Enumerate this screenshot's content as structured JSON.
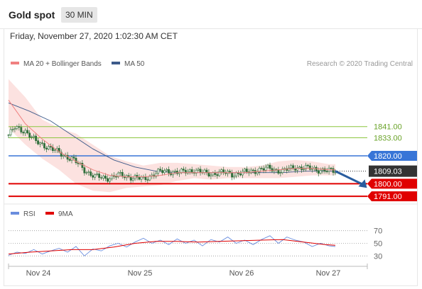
{
  "header": {
    "title": "Gold spot",
    "timeframe": "30 MIN"
  },
  "datetime": "Friday, November 27, 2020 1:02:30 AM CET",
  "credit": "Research © 2020 Trading Central",
  "colors": {
    "ma20": "#f08080",
    "ma50": "#3d5a8a",
    "bands": "#fbd8d6",
    "support": "#e00000",
    "pivot": "#3875d7",
    "resistance": "#8cc63f",
    "candle": "#2f6e3a",
    "rsi": "#6a8dde",
    "rsi_ma": "#e00000",
    "arrow": "#2a5d9e"
  },
  "chart_data": [
    {
      "type": "candlestick",
      "legend": [
        {
          "label": "MA 20 + Bollinger Bands",
          "color": "#f08080"
        },
        {
          "label": "MA 50",
          "color": "#3d5a8a"
        }
      ],
      "x_ticks": [
        "Nov 24",
        "Nov 25",
        "Nov 26",
        "Nov 27"
      ],
      "ylim": [
        1788,
        1880
      ],
      "levels": [
        {
          "label": "1841.00",
          "value": 1841.0,
          "kind": "resistance"
        },
        {
          "label": "1833.00",
          "value": 1833.0,
          "kind": "resistance"
        },
        {
          "label": "1820.00",
          "value": 1820.0,
          "kind": "pivot"
        },
        {
          "label": "1809.03",
          "value": 1809.03,
          "kind": "last"
        },
        {
          "label": "1800.00",
          "value": 1800.0,
          "kind": "support"
        },
        {
          "label": "1791.00",
          "value": 1791.0,
          "kind": "support"
        }
      ],
      "close_path": [
        [
          0,
          1835
        ],
        [
          3,
          1840
        ],
        [
          8,
          1838
        ],
        [
          13,
          1830
        ],
        [
          18,
          1827
        ],
        [
          24,
          1822
        ],
        [
          30,
          1818
        ],
        [
          36,
          1810
        ],
        [
          41,
          1805
        ],
        [
          46,
          1804
        ],
        [
          52,
          1806
        ],
        [
          58,
          1805
        ],
        [
          64,
          1803
        ],
        [
          70,
          1808
        ],
        [
          76,
          1809
        ],
        [
          82,
          1808
        ],
        [
          88,
          1810
        ],
        [
          94,
          1807
        ],
        [
          100,
          1808
        ],
        [
          106,
          1807
        ],
        [
          112,
          1808
        ],
        [
          118,
          1810
        ],
        [
          124,
          1811
        ],
        [
          130,
          1809
        ],
        [
          136,
          1812
        ],
        [
          142,
          1811
        ],
        [
          148,
          1810
        ],
        [
          152,
          1809
        ],
        [
          155,
          1809.03
        ]
      ],
      "ma20_path": [
        [
          0,
          1860
        ],
        [
          8,
          1843
        ],
        [
          16,
          1832
        ],
        [
          24,
          1823
        ],
        [
          32,
          1816
        ],
        [
          40,
          1810
        ],
        [
          48,
          1806
        ],
        [
          56,
          1805
        ],
        [
          64,
          1805
        ],
        [
          72,
          1806
        ],
        [
          80,
          1808
        ],
        [
          88,
          1808
        ],
        [
          96,
          1808
        ],
        [
          104,
          1808
        ],
        [
          112,
          1808
        ],
        [
          120,
          1809
        ],
        [
          128,
          1810
        ],
        [
          136,
          1811
        ],
        [
          144,
          1811
        ],
        [
          152,
          1810
        ],
        [
          155,
          1810
        ]
      ],
      "band_upper": [
        [
          0,
          1875
        ],
        [
          8,
          1862
        ],
        [
          16,
          1846
        ],
        [
          24,
          1840
        ],
        [
          32,
          1836
        ],
        [
          40,
          1828
        ],
        [
          48,
          1820
        ],
        [
          56,
          1816
        ],
        [
          64,
          1813
        ],
        [
          72,
          1815
        ],
        [
          80,
          1815
        ],
        [
          88,
          1814
        ],
        [
          96,
          1813
        ],
        [
          104,
          1812
        ],
        [
          112,
          1812
        ],
        [
          120,
          1813
        ],
        [
          128,
          1816
        ],
        [
          136,
          1817
        ],
        [
          144,
          1816
        ],
        [
          152,
          1814
        ],
        [
          155,
          1814
        ]
      ],
      "band_lower": [
        [
          0,
          1840
        ],
        [
          8,
          1828
        ],
        [
          16,
          1818
        ],
        [
          24,
          1810
        ],
        [
          32,
          1800
        ],
        [
          40,
          1795
        ],
        [
          48,
          1794
        ],
        [
          56,
          1797
        ],
        [
          64,
          1798
        ],
        [
          72,
          1799
        ],
        [
          80,
          1802
        ],
        [
          88,
          1804
        ],
        [
          96,
          1803
        ],
        [
          104,
          1804
        ],
        [
          112,
          1804
        ],
        [
          120,
          1804
        ],
        [
          128,
          1804
        ],
        [
          136,
          1805
        ],
        [
          144,
          1806
        ],
        [
          152,
          1806
        ],
        [
          155,
          1806
        ]
      ],
      "ma50_path": [
        [
          0,
          1858
        ],
        [
          10,
          1852
        ],
        [
          20,
          1845
        ],
        [
          30,
          1835
        ],
        [
          40,
          1825
        ],
        [
          50,
          1817
        ],
        [
          60,
          1812
        ],
        [
          70,
          1809
        ],
        [
          80,
          1808
        ],
        [
          90,
          1808
        ],
        [
          100,
          1808
        ],
        [
          110,
          1808
        ],
        [
          120,
          1808
        ],
        [
          130,
          1808
        ],
        [
          140,
          1809
        ],
        [
          150,
          1809
        ],
        [
          155,
          1809
        ]
      ],
      "forecast_arrow": [
        [
          155,
          1809.03
        ],
        [
          170,
          1797
        ]
      ]
    },
    {
      "type": "line",
      "legend": [
        {
          "label": "RSI",
          "color": "#6a8dde"
        },
        {
          "label": "9MA",
          "color": "#e00000"
        }
      ],
      "y_ticks": [
        "70",
        "50",
        "30"
      ],
      "levels": [
        70,
        50,
        30
      ],
      "ylim": [
        18,
        82
      ],
      "rsi_path": [
        [
          0,
          31
        ],
        [
          4,
          36
        ],
        [
          8,
          34
        ],
        [
          12,
          40
        ],
        [
          16,
          33
        ],
        [
          20,
          38
        ],
        [
          24,
          42
        ],
        [
          28,
          36
        ],
        [
          32,
          45
        ],
        [
          36,
          30
        ],
        [
          40,
          41
        ],
        [
          44,
          38
        ],
        [
          48,
          46
        ],
        [
          52,
          50
        ],
        [
          56,
          44
        ],
        [
          60,
          52
        ],
        [
          64,
          58
        ],
        [
          68,
          50
        ],
        [
          72,
          55
        ],
        [
          76,
          48
        ],
        [
          80,
          57
        ],
        [
          84,
          50
        ],
        [
          88,
          55
        ],
        [
          92,
          46
        ],
        [
          96,
          56
        ],
        [
          100,
          52
        ],
        [
          104,
          60
        ],
        [
          108,
          50
        ],
        [
          112,
          55
        ],
        [
          116,
          48
        ],
        [
          120,
          56
        ],
        [
          124,
          62
        ],
        [
          128,
          50
        ],
        [
          132,
          60
        ],
        [
          136,
          55
        ],
        [
          140,
          52
        ],
        [
          144,
          45
        ],
        [
          148,
          50
        ],
        [
          152,
          46
        ],
        [
          155,
          45
        ]
      ],
      "rsi_ma_path": [
        [
          0,
          33
        ],
        [
          10,
          36
        ],
        [
          20,
          38
        ],
        [
          30,
          40
        ],
        [
          40,
          40
        ],
        [
          50,
          44
        ],
        [
          60,
          50
        ],
        [
          70,
          53
        ],
        [
          80,
          53
        ],
        [
          90,
          52
        ],
        [
          100,
          53
        ],
        [
          110,
          54
        ],
        [
          120,
          55
        ],
        [
          130,
          56
        ],
        [
          140,
          52
        ],
        [
          150,
          48
        ],
        [
          155,
          47
        ]
      ]
    }
  ]
}
